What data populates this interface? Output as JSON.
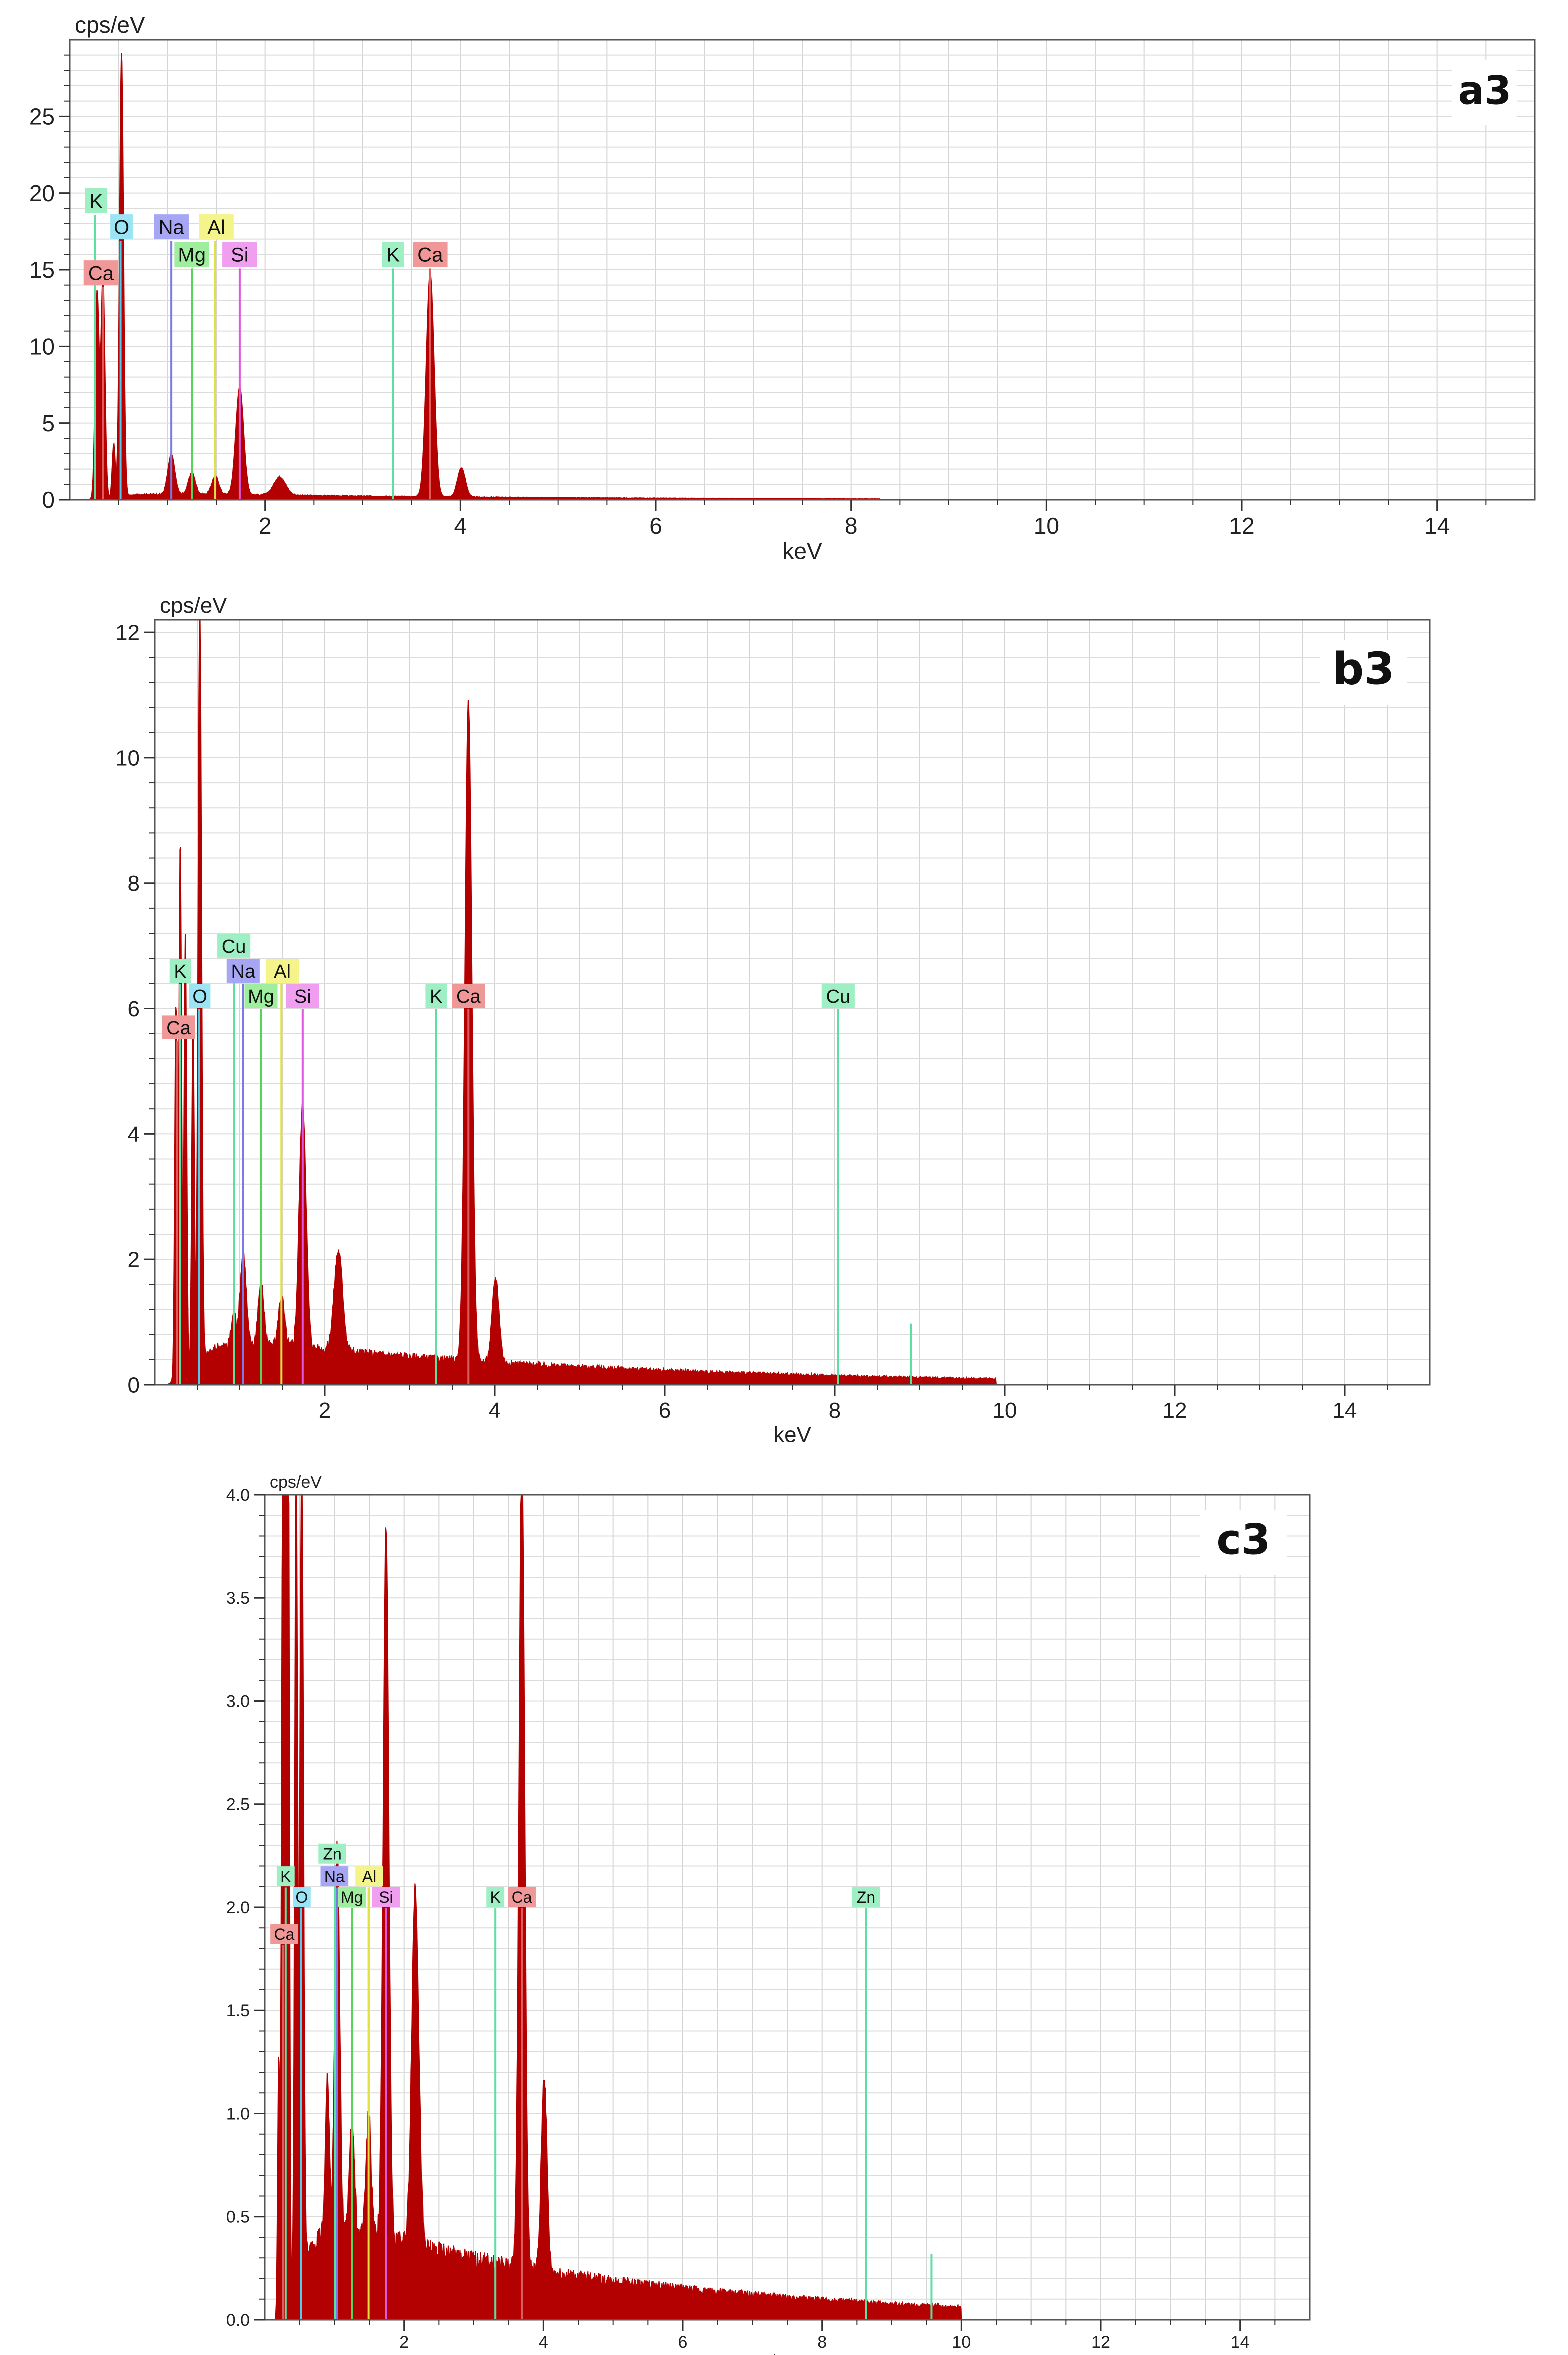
{
  "chart_data": [
    {
      "type": "area",
      "panel_label": "a3",
      "title": "",
      "ylabel": "cps/eV",
      "xlabel": "keV",
      "xlim": [
        0,
        15
      ],
      "ylim": [
        0,
        30
      ],
      "x_ticks": [
        2,
        4,
        6,
        8,
        10,
        12,
        14
      ],
      "y_ticks": [
        0,
        5,
        10,
        15,
        20,
        25
      ],
      "y_tick_labels": [
        "0",
        "5",
        "10",
        "15",
        "20",
        "25"
      ],
      "grid": true,
      "series_color": "#b30000",
      "spectrum_end_kev": 8.3,
      "peaks": [
        {
          "kev": 0.28,
          "height": 13.5,
          "width": 0.02
        },
        {
          "kev": 0.34,
          "height": 14.5,
          "width": 0.02
        },
        {
          "kev": 0.45,
          "height": 3.5,
          "width": 0.015
        },
        {
          "kev": 0.53,
          "height": 29,
          "width": 0.02
        },
        {
          "kev": 1.04,
          "height": 2.6,
          "width": 0.035
        },
        {
          "kev": 1.25,
          "height": 1.4,
          "width": 0.035
        },
        {
          "kev": 1.49,
          "height": 1.2,
          "width": 0.035
        },
        {
          "kev": 1.74,
          "height": 7.0,
          "width": 0.04
        },
        {
          "kev": 2.15,
          "height": 1.2,
          "width": 0.06
        },
        {
          "kev": 3.69,
          "height": 14.6,
          "width": 0.04
        },
        {
          "kev": 4.01,
          "height": 1.9,
          "width": 0.04
        }
      ],
      "markers": [
        {
          "element": "K",
          "kev": 0.26,
          "color": "#5ce0a0"
        },
        {
          "element": "Ca",
          "kev": 0.34,
          "color": "#e05c5c"
        },
        {
          "element": "O",
          "kev": 0.52,
          "color": "#56c8e8"
        },
        {
          "element": "Na",
          "kev": 1.04,
          "color": "#7a7ae6"
        },
        {
          "element": "Mg",
          "kev": 1.25,
          "color": "#56d456"
        },
        {
          "element": "Al",
          "kev": 1.49,
          "color": "#e0e040"
        },
        {
          "element": "Si",
          "kev": 1.74,
          "color": "#e056e0"
        },
        {
          "element": "K",
          "kev": 3.31,
          "color": "#5ce0a0"
        },
        {
          "element": "Ca",
          "kev": 3.69,
          "color": "#e05c5c"
        }
      ],
      "element_labels": [
        {
          "text": "K",
          "kev": 0.27,
          "y": 19.5,
          "color": "#9ef0c4"
        },
        {
          "text": "O",
          "kev": 0.53,
          "y": 17.8,
          "color": "#9ae4f6"
        },
        {
          "text": "Na",
          "kev": 1.04,
          "y": 17.8,
          "color": "#a6a6f4"
        },
        {
          "text": "Al",
          "kev": 1.5,
          "y": 17.8,
          "color": "#f4f48a"
        },
        {
          "text": "Mg",
          "kev": 1.25,
          "y": 16.0,
          "color": "#9eee9e"
        },
        {
          "text": "Si",
          "kev": 1.74,
          "y": 16.0,
          "color": "#f09ef0"
        },
        {
          "text": "Ca",
          "kev": 0.32,
          "y": 14.8,
          "color": "#f09898"
        },
        {
          "text": "K",
          "kev": 3.31,
          "y": 16.0,
          "color": "#9ef0c4"
        },
        {
          "text": "Ca",
          "kev": 3.69,
          "y": 16.0,
          "color": "#f09898"
        }
      ]
    },
    {
      "type": "area",
      "panel_label": "b3",
      "title": "",
      "ylabel": "cps/eV",
      "xlabel": "keV",
      "xlim": [
        0,
        15
      ],
      "ylim": [
        0,
        12.2
      ],
      "x_ticks": [
        2,
        4,
        6,
        8,
        10,
        12,
        14
      ],
      "y_ticks": [
        0,
        2,
        4,
        6,
        8,
        10,
        12
      ],
      "y_tick_labels": [
        "0",
        "2",
        "4",
        "6",
        "8",
        "10",
        "12"
      ],
      "grid": true,
      "series_color": "#b30000",
      "spectrum_end_kev": 9.9,
      "peaks": [
        {
          "kev": 0.25,
          "height": 6.0,
          "width": 0.015
        },
        {
          "kev": 0.3,
          "height": 8.6,
          "width": 0.015
        },
        {
          "kev": 0.36,
          "height": 7.0,
          "width": 0.015
        },
        {
          "kev": 0.45,
          "height": 5.5,
          "width": 0.015
        },
        {
          "kev": 0.53,
          "height": 12.2,
          "width": 0.02
        },
        {
          "kev": 0.93,
          "height": 0.5,
          "width": 0.03
        },
        {
          "kev": 1.04,
          "height": 1.5,
          "width": 0.035
        },
        {
          "kev": 1.25,
          "height": 1.0,
          "width": 0.035
        },
        {
          "kev": 1.49,
          "height": 0.8,
          "width": 0.035
        },
        {
          "kev": 1.74,
          "height": 3.9,
          "width": 0.04
        },
        {
          "kev": 2.16,
          "height": 1.6,
          "width": 0.05
        },
        {
          "kev": 3.69,
          "height": 10.5,
          "width": 0.04
        },
        {
          "kev": 4.01,
          "height": 1.35,
          "width": 0.04
        }
      ],
      "markers": [
        {
          "element": "Ca",
          "kev": 0.26,
          "color": "#e05c5c"
        },
        {
          "element": "K",
          "kev": 0.3,
          "color": "#5ce0a0"
        },
        {
          "element": "O",
          "kev": 0.52,
          "color": "#56c8e8"
        },
        {
          "element": "Cu",
          "kev": 0.93,
          "color": "#5ce0a0"
        },
        {
          "element": "Na",
          "kev": 1.04,
          "color": "#7a7ae6"
        },
        {
          "element": "Mg",
          "kev": 1.25,
          "color": "#56d456"
        },
        {
          "element": "Al",
          "kev": 1.49,
          "color": "#e0e040"
        },
        {
          "element": "Si",
          "kev": 1.74,
          "color": "#e056e0"
        },
        {
          "element": "K",
          "kev": 3.31,
          "color": "#5ce0a0"
        },
        {
          "element": "Ca",
          "kev": 3.69,
          "color": "#e05c5c"
        },
        {
          "element": "Cu",
          "kev": 8.04,
          "color": "#5ce0a0"
        },
        {
          "element": "Cu",
          "kev": 8.9,
          "color": "#5ce0a0"
        }
      ],
      "element_labels": [
        {
          "text": "Cu",
          "kev": 0.93,
          "y": 7.0,
          "color": "#9ef0c4"
        },
        {
          "text": "K",
          "kev": 0.3,
          "y": 6.6,
          "color": "#9ef0c4"
        },
        {
          "text": "Na",
          "kev": 1.04,
          "y": 6.6,
          "color": "#a6a6f4"
        },
        {
          "text": "Al",
          "kev": 1.5,
          "y": 6.6,
          "color": "#f4f48a"
        },
        {
          "text": "O",
          "kev": 0.53,
          "y": 6.2,
          "color": "#9ae4f6"
        },
        {
          "text": "Mg",
          "kev": 1.25,
          "y": 6.2,
          "color": "#9eee9e"
        },
        {
          "text": "Si",
          "kev": 1.74,
          "y": 6.2,
          "color": "#f09ef0"
        },
        {
          "text": "Ca",
          "kev": 0.28,
          "y": 5.7,
          "color": "#f09898"
        },
        {
          "text": "K",
          "kev": 3.31,
          "y": 6.2,
          "color": "#9ef0c4"
        },
        {
          "text": "Ca",
          "kev": 3.69,
          "y": 6.2,
          "color": "#f09898"
        },
        {
          "text": "Cu",
          "kev": 8.04,
          "y": 6.2,
          "color": "#9ef0c4"
        }
      ]
    },
    {
      "type": "area",
      "panel_label": "c3",
      "title": "",
      "ylabel": "cps/eV",
      "xlabel": "keV",
      "xlim": [
        0,
        15
      ],
      "ylim": [
        0,
        4.0
      ],
      "x_ticks": [
        2,
        4,
        6,
        8,
        10,
        12,
        14
      ],
      "y_ticks": [
        0,
        0.5,
        1.0,
        1.5,
        2.0,
        2.5,
        3.0,
        3.5,
        4.0
      ],
      "y_tick_labels": [
        "0.0",
        "0.5",
        "1.0",
        "1.5",
        "2.0",
        "2.5",
        "3.0",
        "3.5",
        "4.0"
      ],
      "grid": true,
      "series_color": "#b30000",
      "spectrum_end_kev": 10.0,
      "peaks": [
        {
          "kev": 0.2,
          "height": 1.2,
          "width": 0.015
        },
        {
          "kev": 0.26,
          "height": 4.0,
          "width": 0.02
        },
        {
          "kev": 0.3,
          "height": 4.0,
          "width": 0.02
        },
        {
          "kev": 0.34,
          "height": 4.0,
          "width": 0.015
        },
        {
          "kev": 0.45,
          "height": 4.0,
          "width": 0.02
        },
        {
          "kev": 0.53,
          "height": 4.0,
          "width": 0.025
        },
        {
          "kev": 0.9,
          "height": 0.75,
          "width": 0.03
        },
        {
          "kev": 1.04,
          "height": 1.9,
          "width": 0.035
        },
        {
          "kev": 1.25,
          "height": 0.6,
          "width": 0.035
        },
        {
          "kev": 1.49,
          "height": 0.6,
          "width": 0.035
        },
        {
          "kev": 1.74,
          "height": 3.45,
          "width": 0.04
        },
        {
          "kev": 2.16,
          "height": 1.75,
          "width": 0.05
        },
        {
          "kev": 3.69,
          "height": 4.0,
          "width": 0.04
        },
        {
          "kev": 4.01,
          "height": 0.95,
          "width": 0.04
        }
      ],
      "markers": [
        {
          "element": "Ca",
          "kev": 0.26,
          "color": "#e05c5c"
        },
        {
          "element": "K",
          "kev": 0.3,
          "color": "#5ce0a0"
        },
        {
          "element": "O",
          "kev": 0.52,
          "color": "#56c8e8"
        },
        {
          "element": "Zn",
          "kev": 1.01,
          "color": "#5ce0a0"
        },
        {
          "element": "Na",
          "kev": 1.04,
          "color": "#7a7ae6"
        },
        {
          "element": "Mg",
          "kev": 1.25,
          "color": "#56d456"
        },
        {
          "element": "Al",
          "kev": 1.49,
          "color": "#e0e040"
        },
        {
          "element": "Si",
          "kev": 1.74,
          "color": "#e056e0"
        },
        {
          "element": "K",
          "kev": 3.31,
          "color": "#5ce0a0"
        },
        {
          "element": "Ca",
          "kev": 3.69,
          "color": "#e05c5c"
        },
        {
          "element": "Zn",
          "kev": 8.63,
          "color": "#5ce0a0"
        },
        {
          "element": "Zn",
          "kev": 9.57,
          "color": "#5ce0a0"
        }
      ],
      "element_labels": [
        {
          "text": "Zn",
          "kev": 0.97,
          "y": 2.26,
          "color": "#9ef0c4"
        },
        {
          "text": "K",
          "kev": 0.3,
          "y": 2.15,
          "color": "#9ef0c4"
        },
        {
          "text": "Na",
          "kev": 1.0,
          "y": 2.15,
          "color": "#a6a6f4"
        },
        {
          "text": "Al",
          "kev": 1.5,
          "y": 2.15,
          "color": "#f4f48a"
        },
        {
          "text": "O",
          "kev": 0.53,
          "y": 2.05,
          "color": "#9ae4f6"
        },
        {
          "text": "Mg",
          "kev": 1.25,
          "y": 2.05,
          "color": "#9eee9e"
        },
        {
          "text": "Si",
          "kev": 1.74,
          "y": 2.05,
          "color": "#f09ef0"
        },
        {
          "text": "Ca",
          "kev": 0.28,
          "y": 1.87,
          "color": "#f09898"
        },
        {
          "text": "K",
          "kev": 3.31,
          "y": 2.05,
          "color": "#9ef0c4"
        },
        {
          "text": "Ca",
          "kev": 3.69,
          "y": 2.05,
          "color": "#f09898"
        },
        {
          "text": "Zn",
          "kev": 8.63,
          "y": 2.05,
          "color": "#9ef0c4"
        }
      ]
    }
  ]
}
